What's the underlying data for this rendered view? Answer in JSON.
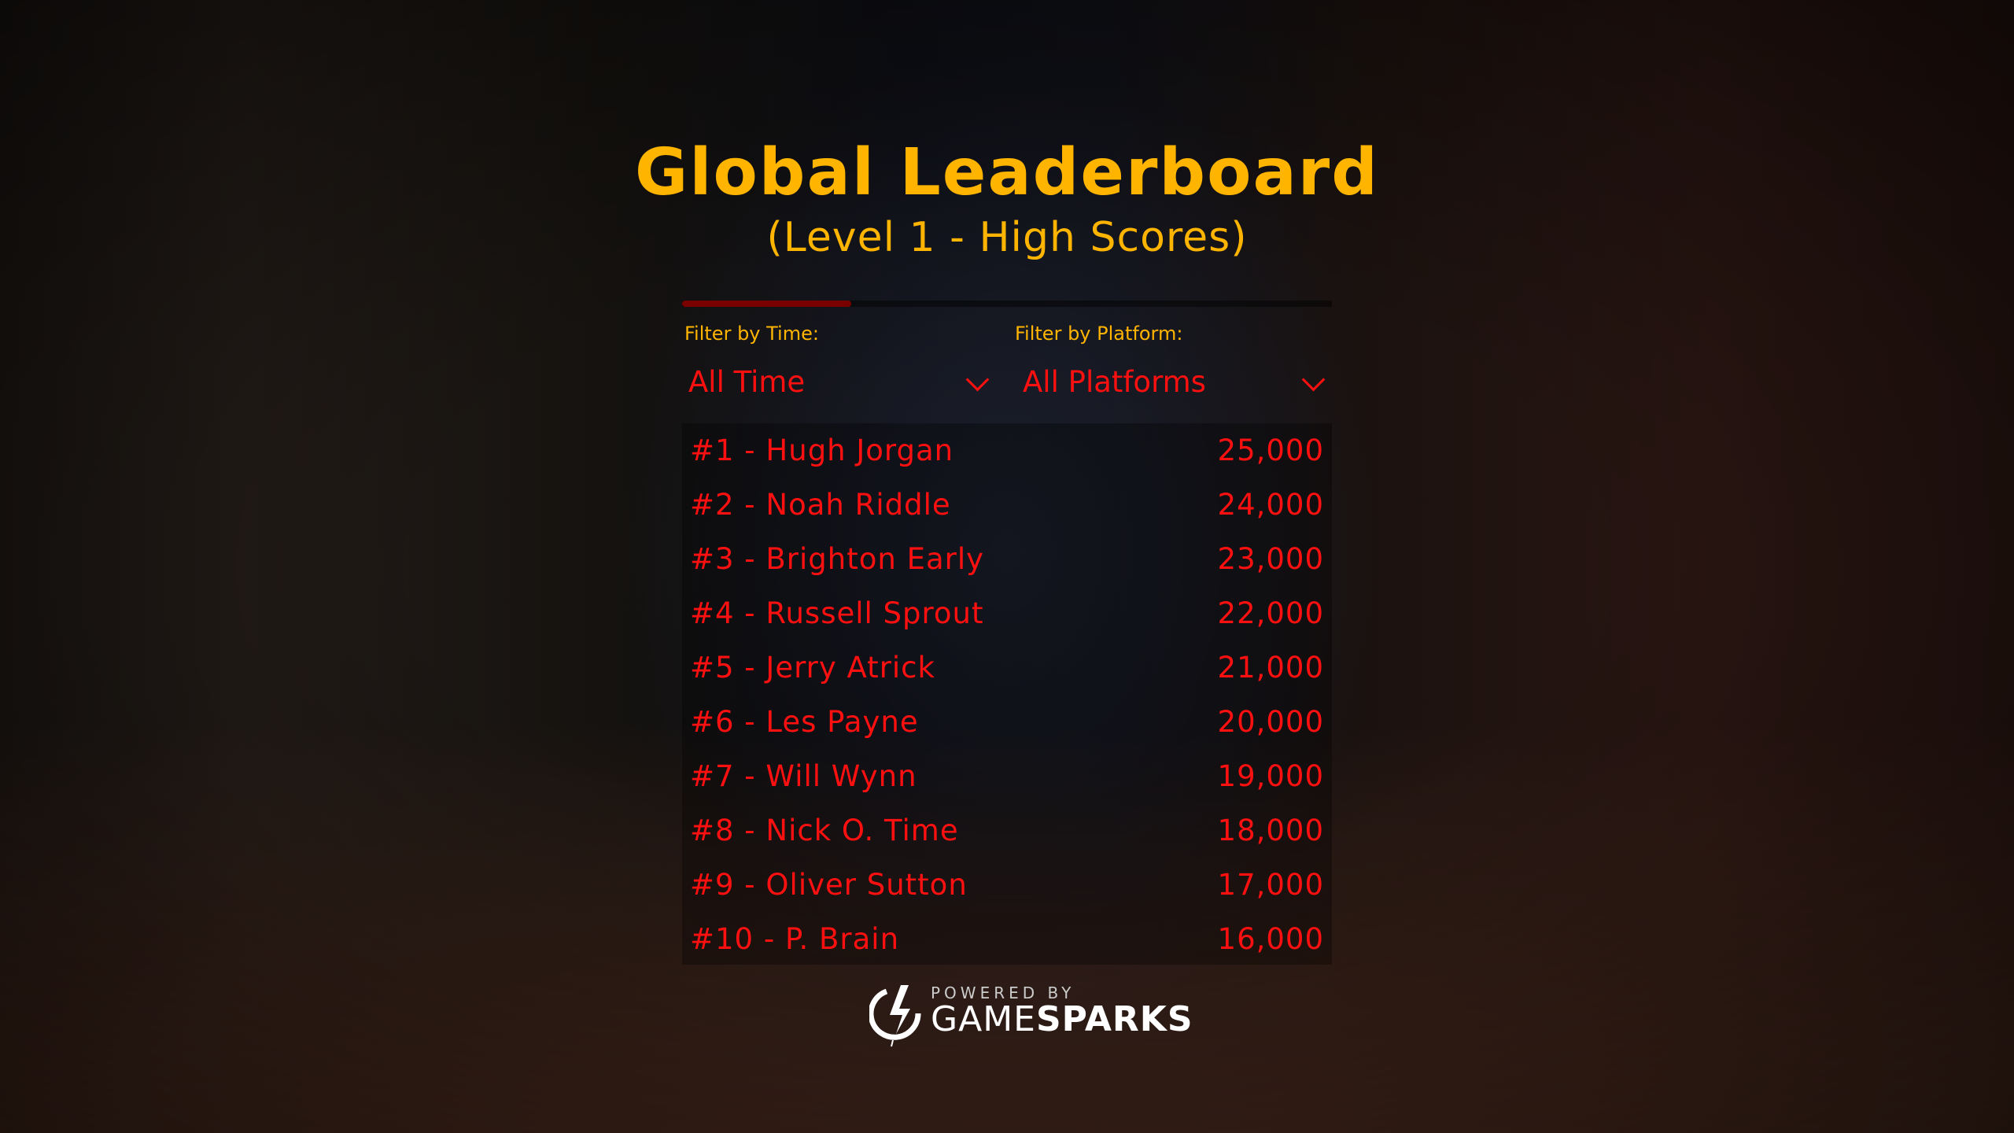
{
  "title": "Global Leaderboard",
  "subtitle": "(Level 1 - High Scores)",
  "progress": 0.26,
  "filters": {
    "time": {
      "label": "Filter by Time:",
      "value": "All Time"
    },
    "platform": {
      "label": "Filter by Platform:",
      "value": "All Platforms"
    }
  },
  "rows": [
    {
      "name": "#1 - Hugh Jorgan",
      "score": "25,000"
    },
    {
      "name": "#2 - Noah Riddle",
      "score": "24,000"
    },
    {
      "name": "#3 - Brighton Early",
      "score": "23,000"
    },
    {
      "name": "#4 - Russell Sprout",
      "score": "22,000"
    },
    {
      "name": "#5 - Jerry Atrick",
      "score": "21,000"
    },
    {
      "name": "#6 - Les Payne",
      "score": "20,000"
    },
    {
      "name": "#7 - Will Wynn",
      "score": "19,000"
    },
    {
      "name": "#8 - Nick O. Time",
      "score": "18,000"
    },
    {
      "name": "#9 - Oliver Sutton",
      "score": "17,000"
    },
    {
      "name": "#10 - P. Brain",
      "score": "16,000"
    }
  ],
  "logo": {
    "powered": "POWERED BY",
    "game": "GAME",
    "sparks": "SPARKS"
  },
  "colors": {
    "title": "#ffb400",
    "text": "#ff1010",
    "bar": "#7a0000"
  }
}
